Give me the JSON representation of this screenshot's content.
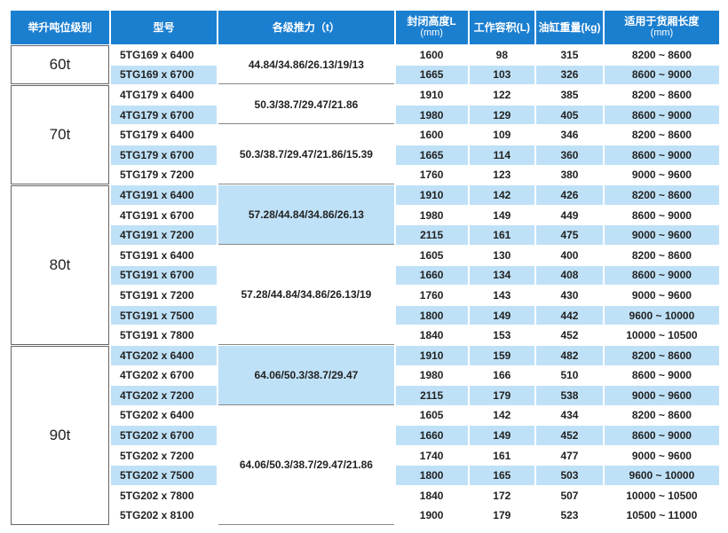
{
  "header": {
    "columns": [
      {
        "label": "举升吨位级别"
      },
      {
        "label": "型号"
      },
      {
        "label": "各级推力（t）"
      },
      {
        "label": "封闭高度L",
        "sub": "(mm)"
      },
      {
        "label": "工作容积(L)"
      },
      {
        "label": "油缸重量(kg)"
      },
      {
        "label": "适用于货厢长度",
        "sub": "(mm)"
      }
    ]
  },
  "groups": [
    {
      "tonnage": "60t",
      "subgroups": [
        {
          "force": "44.84/34.86/26.13/19/13",
          "rows": [
            {
              "model": "5TG169 x 6400",
              "height": 1600,
              "volume": 98,
              "weight": 315,
              "length": "8200 ~ 8600"
            },
            {
              "model": "5TG169 x 6700",
              "height": 1665,
              "volume": 103,
              "weight": 326,
              "length": "8600 ~ 9000"
            }
          ]
        }
      ]
    },
    {
      "tonnage": "70t",
      "subgroups": [
        {
          "force": "50.3/38.7/29.47/21.86",
          "rows": [
            {
              "model": "4TG179 x 6400",
              "height": 1910,
              "volume": 122,
              "weight": 385,
              "length": "8200 ~ 8600"
            },
            {
              "model": "4TG179 x 6700",
              "height": 1980,
              "volume": 129,
              "weight": 405,
              "length": "8600 ~ 9000"
            }
          ]
        },
        {
          "force": "50.3/38.7/29.47/21.86/15.39",
          "rows": [
            {
              "model": "5TG179 x 6400",
              "height": 1600,
              "volume": 109,
              "weight": 346,
              "length": "8200 ~ 8600"
            },
            {
              "model": "5TG179 x 6700",
              "height": 1665,
              "volume": 114,
              "weight": 360,
              "length": "8600 ~ 9000"
            },
            {
              "model": "5TG179 x 7200",
              "height": 1760,
              "volume": 123,
              "weight": 380,
              "length": "9000 ~ 9600"
            }
          ]
        }
      ]
    },
    {
      "tonnage": "80t",
      "subgroups": [
        {
          "force": "57.28/44.84/34.86/26.13",
          "rows": [
            {
              "model": "4TG191 x 6400",
              "height": 1910,
              "volume": 142,
              "weight": 426,
              "length": "8200 ~ 8600"
            },
            {
              "model": "4TG191 x 6700",
              "height": 1980,
              "volume": 149,
              "weight": 449,
              "length": "8600 ~ 9000"
            },
            {
              "model": "4TG191 x 7200",
              "height": 2115,
              "volume": 161,
              "weight": 475,
              "length": "9000 ~ 9600"
            }
          ]
        },
        {
          "force": "57.28/44.84/34.86/26.13/19",
          "rows": [
            {
              "model": "5TG191 x 6400",
              "height": 1605,
              "volume": 130,
              "weight": 400,
              "length": "8200 ~ 8600"
            },
            {
              "model": "5TG191 x 6700",
              "height": 1660,
              "volume": 134,
              "weight": 408,
              "length": "8600 ~ 9000"
            },
            {
              "model": "5TG191 x 7200",
              "height": 1760,
              "volume": 143,
              "weight": 430,
              "length": "9000 ~ 9600"
            },
            {
              "model": "5TG191 x 7500",
              "height": 1800,
              "volume": 149,
              "weight": 442,
              "length": "9600 ~ 10000"
            },
            {
              "model": "5TG191 x 7800",
              "height": 1840,
              "volume": 153,
              "weight": 452,
              "length": "10000 ~ 10500"
            }
          ]
        }
      ]
    },
    {
      "tonnage": "90t",
      "subgroups": [
        {
          "force": "64.06/50.3/38.7/29.47",
          "rows": [
            {
              "model": "4TG202 x 6400",
              "height": 1910,
              "volume": 159,
              "weight": 482,
              "length": "8200 ~ 8600"
            },
            {
              "model": "4TG202 x 6700",
              "height": 1980,
              "volume": 166,
              "weight": 510,
              "length": "8600 ~ 9000"
            },
            {
              "model": "4TG202 x 7200",
              "height": 2115,
              "volume": 179,
              "weight": 538,
              "length": "9000 ~ 9600"
            }
          ]
        },
        {
          "force": "64.06/50.3/38.7/29.47/21.86",
          "rows": [
            {
              "model": "5TG202 x 6400",
              "height": 1605,
              "volume": 142,
              "weight": 434,
              "length": "8200 ~ 8600"
            },
            {
              "model": "5TG202 x 6700",
              "height": 1660,
              "volume": 149,
              "weight": 452,
              "length": "8600 ~ 9000"
            },
            {
              "model": "5TG202 x 7200",
              "height": 1740,
              "volume": 161,
              "weight": 477,
              "length": "9000 ~ 9600"
            },
            {
              "model": "5TG202 x 7500",
              "height": 1800,
              "volume": 165,
              "weight": 503,
              "length": "9600 ~ 10000"
            },
            {
              "model": "5TG202 x 7800",
              "height": 1840,
              "volume": 172,
              "weight": 507,
              "length": "10000 ~ 10500"
            },
            {
              "model": "5TG202 x 8100",
              "height": 1900,
              "volume": 179,
              "weight": 523,
              "length": "10500 ~ 11000"
            }
          ]
        }
      ]
    }
  ]
}
